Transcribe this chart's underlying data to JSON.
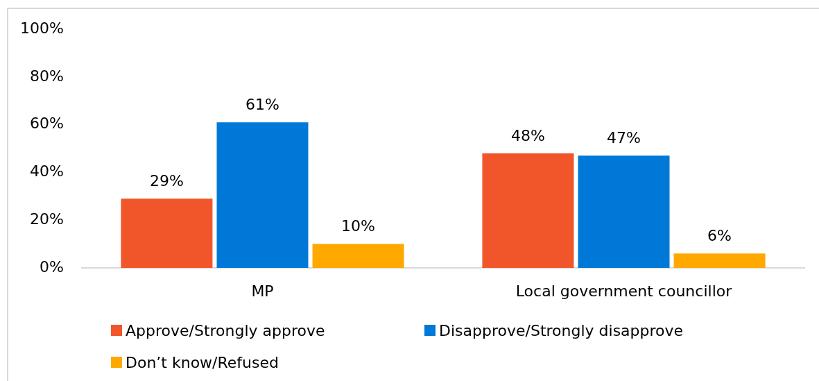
{
  "chart_data": {
    "type": "bar",
    "categories": [
      "MP",
      "Local government councillor"
    ],
    "series": [
      {
        "name": "Approve/Strongly approve",
        "color": "#f1562b",
        "values": [
          29,
          48
        ],
        "value_labels": [
          "29%",
          "48%"
        ]
      },
      {
        "name": "Disapprove/Strongly disapprove",
        "color": "#0078d7",
        "values": [
          61,
          47
        ],
        "value_labels": [
          "61%",
          "47%"
        ]
      },
      {
        "name": "Don’t know/Refused",
        "color": "#ffa800",
        "values": [
          10,
          6
        ],
        "value_labels": [
          "10%",
          "6%"
        ]
      }
    ],
    "ylim": [
      0,
      100
    ],
    "yticks": [
      {
        "value": 0,
        "label": "0%"
      },
      {
        "value": 20,
        "label": "20%"
      },
      {
        "value": 40,
        "label": "40%"
      },
      {
        "value": 60,
        "label": "60%"
      },
      {
        "value": 80,
        "label": "80%"
      },
      {
        "value": 100,
        "label": "100%"
      }
    ],
    "legend": "bottom"
  }
}
